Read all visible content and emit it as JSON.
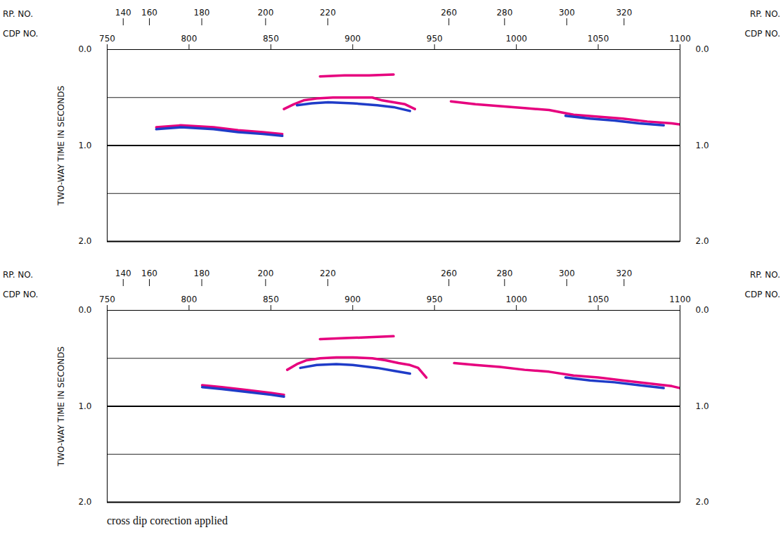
{
  "chart_data": [
    {
      "type": "line",
      "x_label": "CDP NO.",
      "rp_label": "RP. NO.",
      "y_label": "TWO-WAY TIME IN SECONDS",
      "xlim": [
        750,
        1100
      ],
      "xticks": [
        750,
        800,
        850,
        900,
        950,
        1000,
        1050,
        1100
      ],
      "rp_ticks": [
        {
          "cdp": 760,
          "rp": "140"
        },
        {
          "cdp": 776,
          "rp": "160"
        },
        {
          "cdp": 808,
          "rp": "180"
        },
        {
          "cdp": 847,
          "rp": "200"
        },
        {
          "cdp": 885,
          "rp": "220"
        },
        {
          "cdp": 959,
          "rp": "260"
        },
        {
          "cdp": 993,
          "rp": "280"
        },
        {
          "cdp": 1031,
          "rp": "300"
        },
        {
          "cdp": 1066,
          "rp": "320"
        }
      ],
      "ylim": [
        0,
        2
      ],
      "yticks": [
        {
          "value": 0,
          "label": "0.0"
        },
        {
          "value": 1,
          "label": "1.0"
        },
        {
          "value": 2,
          "label": "2.0"
        }
      ],
      "hlines": [
        0.5,
        1,
        1.5,
        2
      ],
      "series": [
        {
          "color": "#e6007e",
          "x": [
            780,
            795,
            815,
            830,
            845,
            857
          ],
          "values": [
            0.81,
            0.79,
            0.81,
            0.84,
            0.86,
            0.88
          ]
        },
        {
          "color": "#1f3cc8",
          "x": [
            780,
            795,
            815,
            830,
            845,
            857
          ],
          "values": [
            0.83,
            0.81,
            0.83,
            0.86,
            0.88,
            0.9
          ]
        },
        {
          "color": "#e6007e",
          "x": [
            858,
            864,
            870,
            878,
            888,
            900,
            912,
            918,
            925,
            932,
            938
          ],
          "values": [
            0.62,
            0.57,
            0.53,
            0.51,
            0.5,
            0.5,
            0.5,
            0.53,
            0.55,
            0.57,
            0.62
          ]
        },
        {
          "color": "#1f3cc8",
          "x": [
            866,
            875,
            885,
            900,
            915,
            925,
            935
          ],
          "values": [
            0.58,
            0.56,
            0.55,
            0.56,
            0.58,
            0.6,
            0.64
          ]
        },
        {
          "color": "#e6007e",
          "x": [
            880,
            895,
            910,
            925
          ],
          "values": [
            0.28,
            0.27,
            0.27,
            0.26
          ]
        },
        {
          "color": "#e6007e",
          "x": [
            960,
            975,
            990,
            1005,
            1020,
            1035,
            1050,
            1065,
            1080,
            1095,
            1100
          ],
          "values": [
            0.54,
            0.57,
            0.59,
            0.61,
            0.63,
            0.68,
            0.7,
            0.72,
            0.75,
            0.77,
            0.78
          ]
        },
        {
          "color": "#1f3cc8",
          "x": [
            1030,
            1045,
            1060,
            1075,
            1090
          ],
          "values": [
            0.69,
            0.72,
            0.74,
            0.77,
            0.79
          ]
        }
      ]
    },
    {
      "type": "line",
      "x_label": "CDP NO.",
      "rp_label": "RP. NO.",
      "y_label": "TWO-WAY TIME IN SECONDS",
      "xlim": [
        750,
        1100
      ],
      "xticks": [
        750,
        800,
        850,
        900,
        950,
        1000,
        1050,
        1100
      ],
      "rp_ticks": [
        {
          "cdp": 760,
          "rp": "140"
        },
        {
          "cdp": 776,
          "rp": "160"
        },
        {
          "cdp": 808,
          "rp": "180"
        },
        {
          "cdp": 847,
          "rp": "200"
        },
        {
          "cdp": 885,
          "rp": "220"
        },
        {
          "cdp": 959,
          "rp": "260"
        },
        {
          "cdp": 993,
          "rp": "280"
        },
        {
          "cdp": 1031,
          "rp": "300"
        },
        {
          "cdp": 1066,
          "rp": "320"
        }
      ],
      "ylim": [
        0,
        2
      ],
      "yticks": [
        {
          "value": 0,
          "label": "0.0"
        },
        {
          "value": 1,
          "label": "1.0"
        },
        {
          "value": 2,
          "label": "2.0"
        }
      ],
      "hlines": [
        0.5,
        1,
        1.5,
        2
      ],
      "series": [
        {
          "color": "#e6007e",
          "x": [
            808,
            820,
            835,
            850,
            858
          ],
          "values": [
            0.78,
            0.8,
            0.83,
            0.86,
            0.88
          ]
        },
        {
          "color": "#1f3cc8",
          "x": [
            808,
            820,
            835,
            850,
            858
          ],
          "values": [
            0.8,
            0.82,
            0.85,
            0.88,
            0.9
          ]
        },
        {
          "color": "#e6007e",
          "x": [
            860,
            866,
            872,
            880,
            890,
            900,
            912,
            920,
            928,
            935,
            940,
            945
          ],
          "values": [
            0.62,
            0.56,
            0.52,
            0.5,
            0.49,
            0.49,
            0.5,
            0.52,
            0.55,
            0.57,
            0.6,
            0.7
          ]
        },
        {
          "color": "#1f3cc8",
          "x": [
            868,
            878,
            890,
            900,
            915,
            925,
            935
          ],
          "values": [
            0.6,
            0.57,
            0.56,
            0.57,
            0.6,
            0.63,
            0.66
          ]
        },
        {
          "color": "#e6007e",
          "x": [
            880,
            895,
            910,
            925
          ],
          "values": [
            0.3,
            0.29,
            0.28,
            0.27
          ]
        },
        {
          "color": "#e6007e",
          "x": [
            962,
            975,
            990,
            1005,
            1020,
            1035,
            1050,
            1065,
            1080,
            1095,
            1100
          ],
          "values": [
            0.55,
            0.57,
            0.59,
            0.62,
            0.64,
            0.68,
            0.7,
            0.73,
            0.76,
            0.79,
            0.81
          ]
        },
        {
          "color": "#1f3cc8",
          "x": [
            1030,
            1045,
            1060,
            1075,
            1090
          ],
          "values": [
            0.7,
            0.73,
            0.75,
            0.78,
            0.81
          ]
        }
      ],
      "caption": "cross dip corection applied"
    }
  ]
}
